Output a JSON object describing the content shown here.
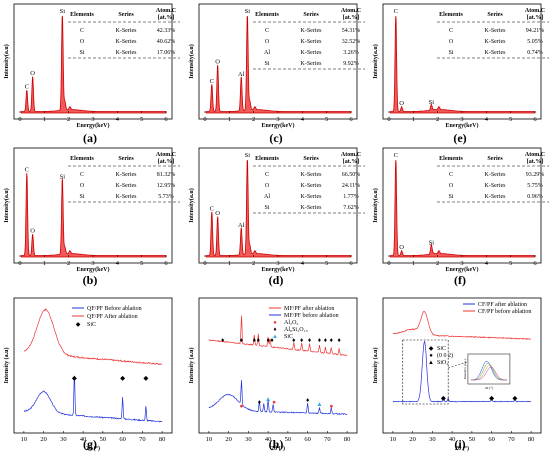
{
  "panel_labels": [
    "(a)",
    "(c)",
    "(e)",
    "(b)",
    "(d)",
    "(f)",
    "(g)",
    "(h)",
    "(i)"
  ],
  "eds": {
    "ylabel": "Intensity(a.u)",
    "xlabel": "Energy(keV)",
    "xticks": [
      "0",
      "1",
      "2",
      "3",
      "4",
      "5",
      "6"
    ],
    "table_header": [
      "Elements",
      "Series",
      "Atom.C",
      "[at.%]"
    ]
  },
  "xrd": {
    "ylabel": "Intensity (a.u)",
    "xlabel": "2θ (°)",
    "xticks": [
      "10",
      "20",
      "30",
      "40",
      "50",
      "60",
      "70",
      "80"
    ]
  },
  "chart_data": [
    {
      "type": "line",
      "panel": "(a)",
      "xlim": [
        0,
        6
      ],
      "peaks": [
        {
          "label": "C",
          "x": 0.28,
          "y": 0.22
        },
        {
          "label": "O",
          "x": 0.52,
          "y": 0.36
        },
        {
          "label": "Si",
          "x": 1.74,
          "y": 1.0
        }
      ],
      "table": [
        [
          "C",
          "K-Series",
          "42.33%"
        ],
        [
          "O",
          "K-Series",
          "40.62%"
        ],
        [
          "Si",
          "K-Series",
          "17.06%"
        ]
      ]
    },
    {
      "type": "line",
      "panel": "(c)",
      "xlim": [
        0,
        6
      ],
      "peaks": [
        {
          "label": "C",
          "x": 0.28,
          "y": 0.28
        },
        {
          "label": "O",
          "x": 0.52,
          "y": 0.48
        },
        {
          "label": "Al",
          "x": 1.49,
          "y": 0.35
        },
        {
          "label": "Si",
          "x": 1.74,
          "y": 1.0
        }
      ],
      "table": [
        [
          "C",
          "K-Series",
          "54.31%"
        ],
        [
          "O",
          "K-Series",
          "32.52%"
        ],
        [
          "Al",
          "K-Series",
          "3.26%"
        ],
        [
          "Si",
          "K-Series",
          "9.92%"
        ]
      ]
    },
    {
      "type": "line",
      "panel": "(e)",
      "xlim": [
        0,
        6
      ],
      "peaks": [
        {
          "label": "C",
          "x": 0.28,
          "y": 1.0
        },
        {
          "label": "O",
          "x": 0.52,
          "y": 0.05
        },
        {
          "label": "Si",
          "x": 1.74,
          "y": 0.06
        }
      ],
      "table": [
        [
          "C",
          "K-Series",
          "94.21%"
        ],
        [
          "O",
          "K-Series",
          "5.05%"
        ],
        [
          "Si",
          "K-Series",
          "0.74%"
        ]
      ]
    },
    {
      "type": "line",
      "panel": "(b)",
      "xlim": [
        0,
        6
      ],
      "peaks": [
        {
          "label": "C",
          "x": 0.28,
          "y": 0.85
        },
        {
          "label": "O",
          "x": 0.52,
          "y": 0.22
        },
        {
          "label": "Si",
          "x": 1.74,
          "y": 0.78
        }
      ],
      "table": [
        [
          "C",
          "K-Series",
          "81.32%"
        ],
        [
          "O",
          "K-Series",
          "12.95%"
        ],
        [
          "Si",
          "K-Series",
          "5.73%"
        ]
      ]
    },
    {
      "type": "line",
      "panel": "(d)",
      "xlim": [
        0,
        6
      ],
      "peaks": [
        {
          "label": "C",
          "x": 0.28,
          "y": 0.45
        },
        {
          "label": "O",
          "x": 0.52,
          "y": 0.4
        },
        {
          "label": "Al",
          "x": 1.49,
          "y": 0.28
        },
        {
          "label": "Si",
          "x": 1.74,
          "y": 1.0
        }
      ],
      "table": [
        [
          "C",
          "K-Series",
          "66.50%"
        ],
        [
          "O",
          "K-Series",
          "24.11%"
        ],
        [
          "Al",
          "K-Series",
          "1.77%"
        ],
        [
          "Si",
          "K-Series",
          "7.62%"
        ]
      ]
    },
    {
      "type": "line",
      "panel": "(f)",
      "xlim": [
        0,
        6
      ],
      "peaks": [
        {
          "label": "C",
          "x": 0.28,
          "y": 1.0
        },
        {
          "label": "O",
          "x": 0.52,
          "y": 0.05
        },
        {
          "label": "Si",
          "x": 1.74,
          "y": 0.1
        }
      ],
      "table": [
        [
          "C",
          "K-Series",
          "93.29%"
        ],
        [
          "O",
          "K-Series",
          "5.75%"
        ],
        [
          "Si",
          "K-Series",
          "0.96%"
        ]
      ]
    },
    {
      "type": "line",
      "panel": "(g)",
      "xlim": [
        5,
        85
      ],
      "series": [
        {
          "name": "QF/PF Before ablation",
          "color": "#2233dd"
        },
        {
          "name": "QF/PF After ablation",
          "color": "#ee3333"
        }
      ],
      "markers": [
        {
          "name": "SiC",
          "symbol": "◆",
          "x": [
            35.6,
            60.0,
            71.8
          ]
        }
      ]
    },
    {
      "type": "line",
      "panel": "(h)",
      "xlim": [
        5,
        85
      ],
      "series": [
        {
          "name": "MF/PF after ablation",
          "color": "#ee3333"
        },
        {
          "name": "MF/PF before ablation",
          "color": "#2233dd"
        }
      ],
      "markers": [
        {
          "name": "Al₂O₃",
          "symbol": "●",
          "color": "#ee3333"
        },
        {
          "name": "Al₆Si₂O₁₃",
          "symbol": "♦",
          "color": "#000000"
        },
        {
          "name": "SiC",
          "symbol": "▲",
          "color": "#33aadd"
        }
      ]
    },
    {
      "type": "line",
      "panel": "(i)",
      "xlim": [
        5,
        85
      ],
      "series": [
        {
          "name": "CF/PF after ablation",
          "color": "#2233dd"
        },
        {
          "name": "CF/PF before ablation",
          "color": "#ee3333"
        }
      ],
      "markers": [
        {
          "name": "SiC",
          "symbol": "◆",
          "x": [
            35.6,
            60.0,
            71.8
          ]
        },
        {
          "name": "(0 0 2)",
          "symbol": "●",
          "x": [
            26
          ]
        },
        {
          "name": "SiO₂",
          "symbol": "▲",
          "x": [
            38
          ]
        }
      ],
      "inset": {
        "ylabel": "Intensity (a.u.)",
        "xlabel": "2θ (°)"
      }
    }
  ]
}
